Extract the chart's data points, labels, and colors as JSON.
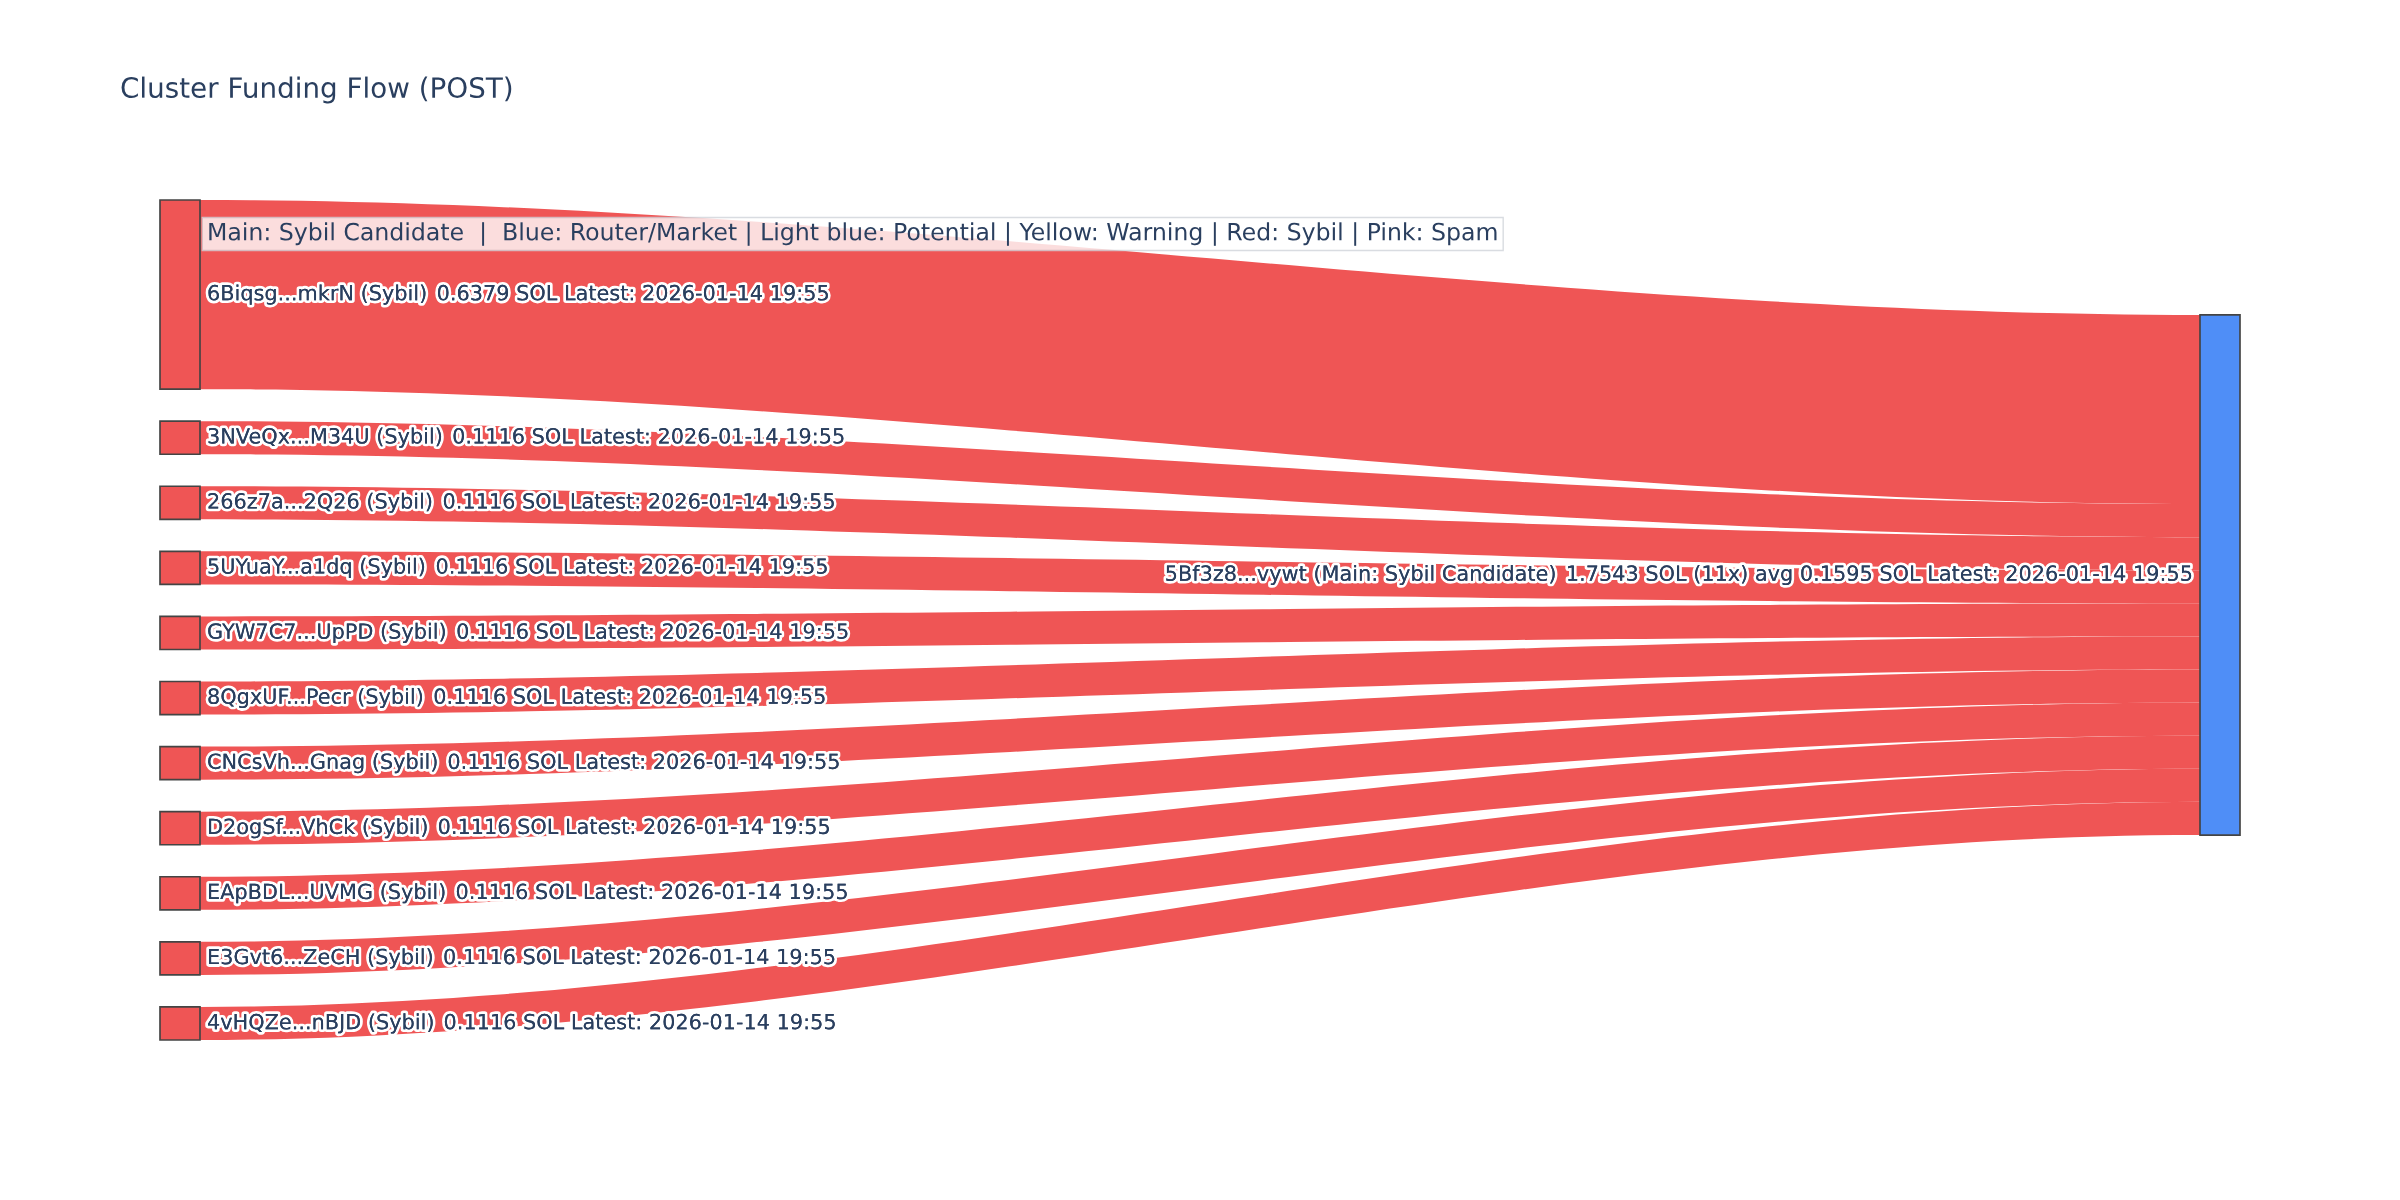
{
  "chart_data": {
    "type": "other",
    "title": "Cluster Funding Flow (POST)",
    "categories": [
      "6Biqsg...mkrN (Sybil)",
      "3NVeQx...M34U (Sybil)",
      "266z7a...2Q26 (Sybil)",
      "5UYuaY...a1dq (Sybil)",
      "GYW7C7...UpPD (Sybil)",
      "8QgxUF...Pecr (Sybil)",
      "CNCsVh...Gnag (Sybil)",
      "D2ogSf...VhCk (Sybil)",
      "EApBDL...UVMG (Sybil)",
      "E3Gvt6...ZeCH (Sybil)",
      "4vHQZe...nBJD (Sybil)",
      "5Bf3z8...vywt (Main: Sybil Candidate)"
    ],
    "values": [
      0.6379,
      0.1116,
      0.1116,
      0.1116,
      0.1116,
      0.1116,
      0.1116,
      0.1116,
      0.1116,
      0.1116,
      0.1116,
      1.7543
    ],
    "value_labels": [
      "0.6379 SOL Latest: 2026-01-14 19:55",
      "0.1116 SOL Latest: 2026-01-14 19:55",
      "0.1116 SOL Latest: 2026-01-14 19:55",
      "0.1116 SOL Latest: 2026-01-14 19:55",
      "0.1116 SOL Latest: 2026-01-14 19:55",
      "0.1116 SOL Latest: 2026-01-14 19:55",
      "0.1116 SOL Latest: 2026-01-14 19:55",
      "0.1116 SOL Latest: 2026-01-14 19:55",
      "0.1116 SOL Latest: 2026-01-14 19:55",
      "0.1116 SOL Latest: 2026-01-14 19:55",
      "0.1116 SOL Latest: 2026-01-14 19:55",
      "1.7543 SOL (11x) avg 0.1595 SOL Latest: 2026-01-14 19:55"
    ],
    "colors": [
      "#ef5555",
      "#ef5555",
      "#ef5555",
      "#ef5555",
      "#ef5555",
      "#ef5555",
      "#ef5555",
      "#ef5555",
      "#ef5555",
      "#ef5555",
      "#ef5555",
      "#4f8ef7"
    ],
    "annotations": [
      "Main: Sybil Candidate  |  Blue: Router/Market | Light blue: Potential | Yellow: Warning | Red: Sybil | Pink: Spam"
    ]
  }
}
